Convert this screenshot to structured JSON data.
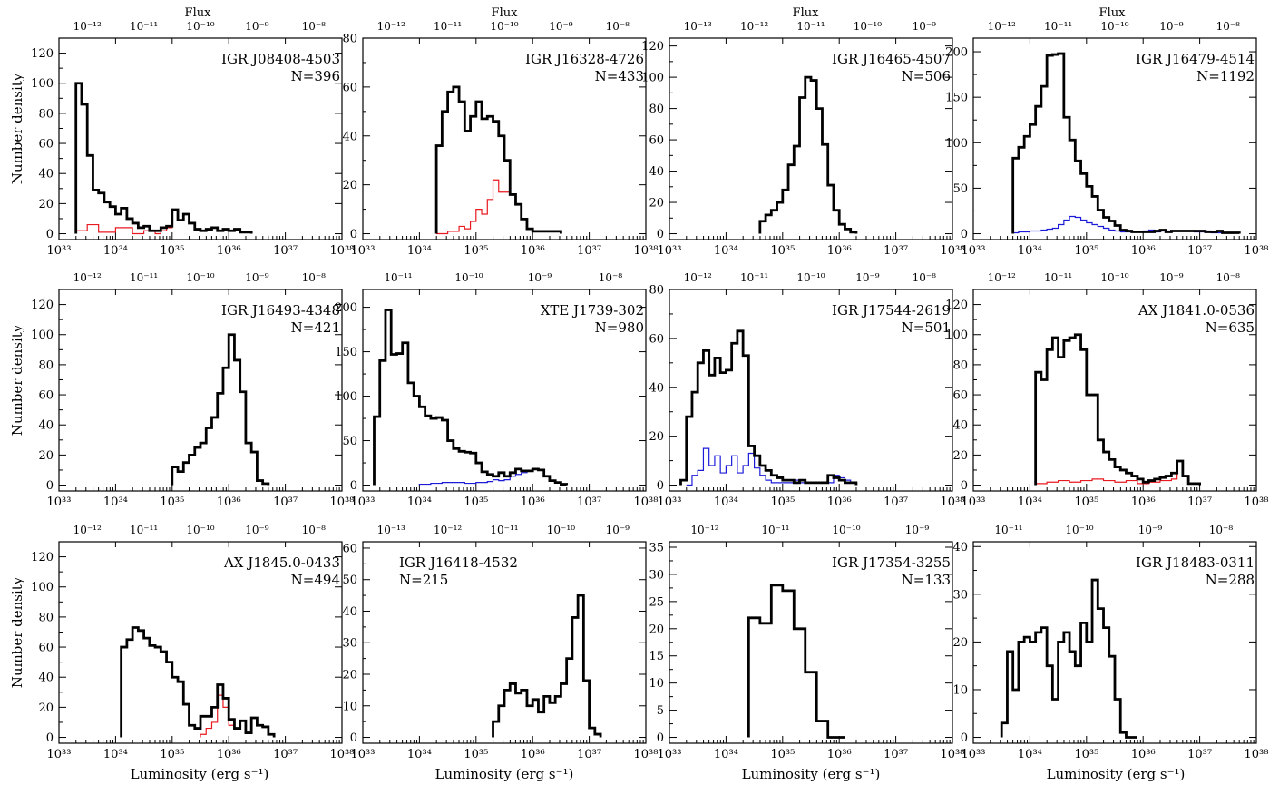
{
  "figure": {
    "flux_label": "Flux",
    "ylabel": "Number density",
    "xlabel": "Luminosity (erg s⁻¹)"
  },
  "colors": {
    "main": "#000000",
    "red": "#e8191f",
    "blue": "#1c1cd8"
  },
  "chart_data": [
    {
      "type": "line",
      "title": "IGR J08408-4503",
      "count": "N=396",
      "xlim": [
        33,
        38
      ],
      "ylim": [
        0,
        130
      ],
      "yticks": [
        0,
        20,
        40,
        60,
        80,
        100,
        120
      ],
      "flux_ticks": [
        -12,
        -11,
        -10,
        -9,
        -8
      ],
      "main_x": [
        33.3,
        33.4,
        33.5,
        33.6,
        33.7,
        33.8,
        33.9,
        34.0,
        34.1,
        34.2,
        34.3,
        34.4,
        34.5,
        34.6,
        34.7,
        34.8,
        34.9,
        35.0,
        35.1,
        35.2,
        35.3,
        35.4,
        35.5,
        35.6,
        35.7,
        35.8,
        35.9,
        36.0,
        36.1,
        36.2,
        36.3,
        36.4
      ],
      "main_y": [
        100,
        86,
        52,
        29,
        27,
        21,
        18,
        13,
        17,
        10,
        7,
        4,
        5,
        2,
        2,
        4,
        5,
        16,
        9,
        13,
        7,
        3,
        2,
        3,
        4,
        2,
        3,
        2,
        3,
        1,
        1
      ],
      "second_color": "red",
      "second_x": [
        33.3,
        33.5,
        33.7,
        34.0,
        34.3,
        34.5,
        34.7,
        34.8,
        34.9,
        35.0,
        35.1,
        35.2,
        35.3,
        35.4,
        35.5,
        35.6,
        35.7,
        35.8,
        35.9,
        36.0,
        36.1,
        36.2,
        36.3,
        36.4
      ],
      "second_y": [
        2,
        6,
        1,
        4,
        0,
        2,
        0,
        2,
        4,
        16,
        9,
        13,
        7,
        3,
        2,
        3,
        4,
        2,
        3,
        2,
        3,
        1,
        1
      ]
    },
    {
      "type": "line",
      "title": "IGR J16328-4726",
      "count": "N=433",
      "xlim": [
        33,
        38
      ],
      "ylim": [
        0,
        80
      ],
      "yticks": [
        0,
        20,
        40,
        60,
        80
      ],
      "flux_ticks": [
        -12,
        -11,
        -10,
        -9,
        -8
      ],
      "main_x": [
        34.3,
        34.4,
        34.5,
        34.6,
        34.7,
        34.8,
        34.9,
        35.0,
        35.1,
        35.2,
        35.3,
        35.4,
        35.5,
        35.6,
        35.7,
        35.8,
        35.9,
        36.0,
        36.1,
        36.2,
        36.3,
        36.4,
        36.5
      ],
      "main_y": [
        36,
        50,
        58,
        60,
        54,
        42,
        48,
        54,
        47,
        48,
        46,
        40,
        30,
        16,
        12,
        6,
        2,
        1,
        1,
        1,
        1,
        1
      ],
      "second_color": "red",
      "second_x": [
        34.3,
        34.5,
        34.7,
        34.8,
        34.9,
        35.0,
        35.1,
        35.2,
        35.3,
        35.4,
        35.5,
        35.6,
        35.7,
        35.8,
        35.9,
        36.0,
        36.1,
        36.2,
        36.3,
        36.4,
        36.5
      ],
      "second_y": [
        0,
        1,
        3,
        2,
        5,
        10,
        8,
        14,
        22,
        17,
        17,
        16,
        12,
        6,
        2,
        1,
        1,
        1,
        1,
        1
      ]
    },
    {
      "type": "line",
      "title": "IGR J16465-4507",
      "count": "N=506",
      "xlim": [
        33,
        38
      ],
      "ylim": [
        0,
        125
      ],
      "yticks": [
        0,
        20,
        40,
        60,
        80,
        100,
        120
      ],
      "flux_ticks": [
        -13,
        -12,
        -11,
        -10,
        -9
      ],
      "main_x": [
        34.6,
        34.7,
        34.8,
        34.9,
        35.0,
        35.1,
        35.2,
        35.3,
        35.4,
        35.5,
        35.6,
        35.7,
        35.8,
        35.9,
        36.0,
        36.1,
        36.2,
        36.3
      ],
      "main_y": [
        8,
        12,
        15,
        20,
        28,
        44,
        56,
        87,
        100,
        98,
        80,
        57,
        31,
        15,
        6,
        3,
        1
      ]
    },
    {
      "type": "line",
      "title": "IGR J16479-4514",
      "count": "N=1192",
      "xlim": [
        33,
        38
      ],
      "ylim": [
        0,
        215
      ],
      "yticks": [
        0,
        50,
        100,
        150,
        200
      ],
      "flux_ticks": [
        -12,
        -11,
        -10,
        -9,
        -8
      ],
      "main_x": [
        33.7,
        33.8,
        33.9,
        34.0,
        34.1,
        34.2,
        34.3,
        34.4,
        34.5,
        34.6,
        34.7,
        34.8,
        34.9,
        35.0,
        35.1,
        35.2,
        35.3,
        35.4,
        35.5,
        35.6,
        35.7,
        35.8,
        35.9,
        36.0,
        36.1,
        36.2,
        36.3,
        36.4,
        36.5,
        36.6,
        36.7,
        36.8,
        36.9,
        37.0,
        37.1,
        37.2,
        37.3,
        37.4,
        37.5,
        37.6,
        37.7
      ],
      "main_y": [
        83,
        95,
        107,
        120,
        140,
        162,
        196,
        197,
        198,
        128,
        103,
        80,
        66,
        52,
        41,
        26,
        18,
        14,
        9,
        4,
        3,
        2,
        2,
        2,
        2,
        3,
        4,
        2,
        3,
        3,
        3,
        3,
        3,
        3,
        2,
        2,
        3,
        1,
        1,
        1
      ],
      "second_color": "blue",
      "second_x": [
        33.7,
        33.8,
        34.0,
        34.2,
        34.3,
        34.4,
        34.5,
        34.6,
        34.7,
        34.8,
        34.9,
        35.0,
        35.1,
        35.2,
        35.3,
        35.4,
        35.5,
        35.6,
        35.7,
        35.8,
        35.9,
        36.0,
        36.1,
        36.2,
        36.3,
        36.4,
        36.5,
        36.6,
        36.7,
        36.8,
        36.9,
        37.0,
        37.1,
        37.2,
        37.3,
        37.4,
        37.5,
        37.6,
        37.7
      ],
      "second_y": [
        1,
        2,
        3,
        4,
        5,
        6,
        10,
        15,
        19,
        18,
        15,
        12,
        10,
        8,
        6,
        4,
        3,
        2,
        2,
        2,
        2,
        3,
        4,
        2,
        3,
        3,
        3,
        3,
        3,
        3,
        2,
        2,
        3,
        1,
        1,
        1,
        1,
        1
      ]
    },
    {
      "type": "line",
      "title": "IGR J16493-4348",
      "count": "N=421",
      "xlim": [
        33,
        38
      ],
      "ylim": [
        0,
        130
      ],
      "yticks": [
        0,
        20,
        40,
        60,
        80,
        100,
        120
      ],
      "flux_ticks": [
        -12,
        -11,
        -10,
        -9,
        -8
      ],
      "main_x": [
        35.0,
        35.1,
        35.2,
        35.3,
        35.4,
        35.5,
        35.6,
        35.7,
        35.8,
        35.9,
        36.0,
        36.1,
        36.2,
        36.3,
        36.4,
        36.5,
        36.6,
        36.7
      ],
      "main_y": [
        12,
        9,
        15,
        20,
        25,
        28,
        38,
        45,
        61,
        78,
        100,
        83,
        62,
        28,
        22,
        3,
        1
      ]
    },
    {
      "type": "line",
      "title": "XTE J1739-302",
      "count": "N=980",
      "xlim": [
        33,
        38
      ],
      "ylim": [
        0,
        220
      ],
      "yticks": [
        0,
        50,
        100,
        150,
        200
      ],
      "flux_ticks": [
        -11,
        -10,
        -9,
        -8
      ],
      "main_x": [
        33.2,
        33.3,
        33.4,
        33.5,
        33.6,
        33.7,
        33.8,
        33.9,
        34.0,
        34.1,
        34.2,
        34.3,
        34.4,
        34.5,
        34.6,
        34.7,
        34.8,
        34.9,
        35.0,
        35.1,
        35.2,
        35.3,
        35.4,
        35.5,
        35.6,
        35.7,
        35.8,
        35.9,
        36.0,
        36.1,
        36.2,
        36.3,
        36.4,
        36.5,
        36.6
      ],
      "main_y": [
        77,
        140,
        197,
        147,
        148,
        160,
        115,
        100,
        88,
        78,
        75,
        76,
        73,
        50,
        41,
        38,
        37,
        36,
        25,
        15,
        12,
        10,
        14,
        10,
        14,
        18,
        16,
        16,
        18,
        17,
        10,
        5,
        3,
        1
      ],
      "second_color": "blue",
      "second_x": [
        34.0,
        34.2,
        34.4,
        34.6,
        34.8,
        35.0,
        35.2,
        35.3,
        35.4,
        35.5,
        35.6,
        35.7,
        35.8,
        35.9,
        36.0,
        36.1,
        36.2,
        36.3,
        36.4,
        36.5,
        36.6
      ],
      "second_y": [
        1,
        2,
        3,
        3,
        2,
        3,
        4,
        6,
        5,
        6,
        10,
        12,
        14,
        16,
        18,
        17,
        10,
        5,
        3,
        1
      ]
    },
    {
      "type": "line",
      "title": "IGR J17544-2619",
      "count": "N=501",
      "xlim": [
        33,
        38
      ],
      "ylim": [
        0,
        80
      ],
      "yticks": [
        0,
        20,
        40,
        60,
        80
      ],
      "flux_ticks": [
        -12,
        -11,
        -10,
        -9,
        -8
      ],
      "main_x": [
        33.2,
        33.3,
        33.4,
        33.5,
        33.6,
        33.7,
        33.8,
        33.9,
        34.0,
        34.1,
        34.2,
        34.3,
        34.4,
        34.5,
        34.6,
        34.7,
        34.8,
        34.9,
        35.0,
        35.1,
        35.2,
        35.3,
        35.4,
        35.5,
        35.6,
        35.7,
        35.8,
        35.9,
        36.0,
        36.1,
        36.2,
        36.3
      ],
      "main_y": [
        2,
        28,
        38,
        50,
        55,
        45,
        52,
        46,
        47,
        58,
        63,
        53,
        16,
        12,
        8,
        6,
        4,
        3,
        2,
        2,
        1,
        2,
        1,
        1,
        1,
        1,
        4,
        3,
        2,
        1,
        1
      ],
      "second_color": "blue",
      "second_x": [
        33.3,
        33.4,
        33.5,
        33.6,
        33.7,
        33.8,
        33.9,
        34.0,
        34.1,
        34.2,
        34.3,
        34.4,
        34.5,
        34.6,
        34.7,
        34.8,
        34.9,
        35.0,
        35.1,
        35.2,
        35.3,
        35.4,
        35.5,
        35.6,
        35.7,
        35.8,
        35.9,
        36.0,
        36.1,
        36.2,
        36.3
      ],
      "second_y": [
        0,
        4,
        6,
        15,
        8,
        12,
        5,
        8,
        12,
        5,
        8,
        13,
        7,
        4,
        2,
        1,
        1,
        1,
        1,
        2,
        1,
        1,
        1,
        1,
        1,
        1,
        4,
        3,
        2,
        1
      ]
    },
    {
      "type": "line",
      "title": "AX J1841.0-0536",
      "count": "N=635",
      "xlim": [
        33,
        38
      ],
      "ylim": [
        0,
        130
      ],
      "yticks": [
        0,
        20,
        40,
        60,
        80,
        100,
        120
      ],
      "flux_ticks": [
        -12,
        -11,
        -10,
        -9,
        -8
      ],
      "main_x": [
        34.1,
        34.2,
        34.3,
        34.4,
        34.5,
        34.6,
        34.7,
        34.8,
        34.9,
        35.0,
        35.1,
        35.2,
        35.3,
        35.4,
        35.5,
        35.6,
        35.7,
        35.8,
        35.9,
        36.0,
        36.1,
        36.2,
        36.3,
        36.4,
        36.5,
        36.6,
        36.7,
        36.8,
        36.9,
        37.0
      ],
      "main_y": [
        75,
        70,
        90,
        98,
        85,
        96,
        98,
        100,
        90,
        60,
        60,
        30,
        22,
        17,
        12,
        10,
        8,
        6,
        4,
        2,
        3,
        4,
        5,
        6,
        8,
        16,
        6,
        1,
        1
      ],
      "second_color": "red",
      "second_x": [
        34.1,
        34.3,
        34.5,
        34.7,
        34.9,
        35.1,
        35.3,
        35.5,
        35.7,
        35.9,
        36.1,
        36.3,
        36.5,
        36.6,
        36.7,
        36.8,
        36.9,
        37.0
      ],
      "second_y": [
        1,
        2,
        3,
        2,
        3,
        4,
        3,
        2,
        3,
        1,
        2,
        3,
        4,
        16,
        6,
        1,
        1
      ]
    },
    {
      "type": "line",
      "title": "AX J1845.0-0433",
      "count": "N=494",
      "xlim": [
        33,
        38
      ],
      "ylim": [
        0,
        130
      ],
      "yticks": [
        0,
        20,
        40,
        60,
        80,
        100,
        120
      ],
      "flux_ticks": [
        -12,
        -11,
        -10,
        -9,
        -8
      ],
      "main_x": [
        34.1,
        34.2,
        34.3,
        34.4,
        34.5,
        34.6,
        34.7,
        34.8,
        34.9,
        35.0,
        35.1,
        35.2,
        35.3,
        35.4,
        35.5,
        35.6,
        35.7,
        35.8,
        35.9,
        36.0,
        36.1,
        36.2,
        36.3,
        36.4,
        36.5,
        36.6,
        36.7,
        36.8
      ],
      "main_y": [
        60,
        65,
        73,
        71,
        66,
        61,
        60,
        57,
        50,
        40,
        37,
        22,
        8,
        6,
        14,
        14,
        20,
        35,
        26,
        12,
        6,
        11,
        3,
        13,
        8,
        7,
        2
      ],
      "second_color": "red",
      "second_x": [
        35.5,
        35.6,
        35.7,
        35.8,
        35.9,
        36.0,
        36.1,
        36.2,
        36.3,
        36.4,
        36.5,
        36.6,
        36.7,
        36.8
      ],
      "second_y": [
        2,
        6,
        10,
        28,
        20,
        8,
        6,
        11,
        3,
        13,
        8,
        7,
        2
      ]
    },
    {
      "type": "line",
      "title": "IGR J16418-4532",
      "count": "N=215",
      "xlim": [
        33,
        38
      ],
      "ylim": [
        0,
        62
      ],
      "yticks": [
        0,
        10,
        20,
        30,
        40,
        50,
        60
      ],
      "flux_ticks": [
        -13,
        -12,
        -11,
        -10,
        -9
      ],
      "main_x": [
        35.3,
        35.4,
        35.5,
        35.6,
        35.7,
        35.8,
        35.9,
        36.0,
        36.1,
        36.2,
        36.3,
        36.4,
        36.5,
        36.6,
        36.7,
        36.8,
        36.9,
        37.0,
        37.1,
        37.2
      ],
      "main_y": [
        5,
        10,
        15,
        17,
        14,
        15,
        10,
        12,
        8,
        13,
        11,
        13,
        17,
        25,
        38,
        45,
        18,
        3,
        1
      ]
    },
    {
      "type": "line",
      "title": "IGR J17354-3255",
      "count": "N=133",
      "xlim": [
        33,
        38
      ],
      "ylim": [
        0,
        36
      ],
      "yticks": [
        0,
        5,
        10,
        15,
        20,
        25,
        30,
        35
      ],
      "flux_ticks": [
        -12,
        -11,
        -10,
        -9
      ],
      "main_x": [
        34.4,
        34.6,
        34.8,
        35.0,
        35.2,
        35.4,
        35.6,
        35.8,
        36.0,
        36.1
      ],
      "main_y": [
        22,
        21,
        28,
        27,
        20,
        12,
        3,
        0,
        0
      ]
    },
    {
      "type": "line",
      "title": "IGR J18483-0311",
      "count": "N=288",
      "xlim": [
        33,
        38
      ],
      "ylim": [
        0,
        41
      ],
      "yticks": [
        0,
        10,
        20,
        30,
        40
      ],
      "flux_ticks": [
        -11,
        -10,
        -9,
        -8
      ],
      "main_x": [
        33.5,
        33.6,
        33.7,
        33.8,
        33.9,
        34.0,
        34.1,
        34.2,
        34.3,
        34.4,
        34.5,
        34.6,
        34.7,
        34.8,
        34.9,
        35.0,
        35.1,
        35.2,
        35.3,
        35.4,
        35.5,
        35.6,
        35.7,
        35.8,
        35.9
      ],
      "main_y": [
        3,
        18,
        10,
        20,
        21,
        20,
        22,
        23,
        15,
        8,
        20,
        22,
        18,
        15,
        24,
        20,
        33,
        27,
        23,
        17,
        8,
        1,
        0,
        0
      ]
    }
  ]
}
